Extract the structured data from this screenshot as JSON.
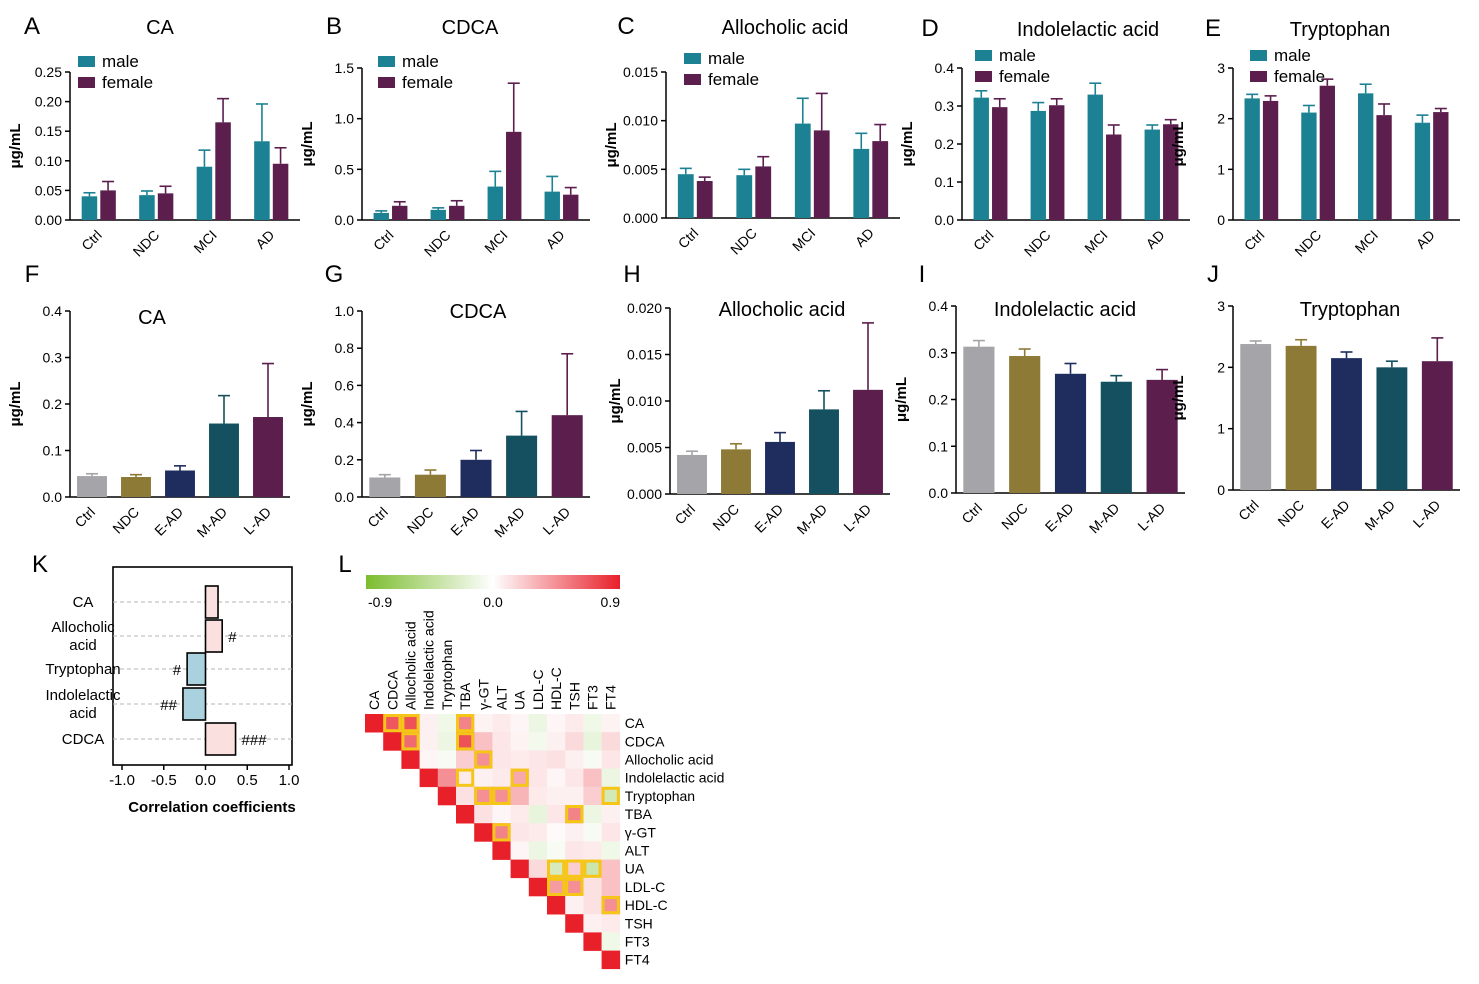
{
  "chart_data": [
    {
      "panel": "A",
      "type": "bar",
      "title": "CA",
      "ylabel": "μg/mL",
      "ylim": [
        0,
        0.25
      ],
      "yticks": [
        "0.00",
        "0.05",
        "0.10",
        "0.15",
        "0.20",
        "0.25"
      ],
      "categories": [
        "Ctrl",
        "NDC",
        "MCI",
        "AD"
      ],
      "legend": [
        "male",
        "female"
      ],
      "series": [
        {
          "name": "male",
          "values": [
            0.04,
            0.042,
            0.09,
            0.133
          ],
          "errors": [
            0.006,
            0.007,
            0.028,
            0.063
          ]
        },
        {
          "name": "female",
          "values": [
            0.05,
            0.045,
            0.165,
            0.095
          ],
          "errors": [
            0.015,
            0.012,
            0.04,
            0.027
          ]
        }
      ]
    },
    {
      "panel": "B",
      "type": "bar",
      "title": "CDCA",
      "ylabel": "μg/mL",
      "ylim": [
        0,
        1.5
      ],
      "yticks": [
        "0.0",
        "0.5",
        "1.0",
        "1.5"
      ],
      "categories": [
        "Ctrl",
        "NDC",
        "MCI",
        "AD"
      ],
      "legend": [
        "male",
        "female"
      ],
      "series": [
        {
          "name": "male",
          "values": [
            0.07,
            0.1,
            0.33,
            0.28
          ],
          "errors": [
            0.02,
            0.02,
            0.15,
            0.15
          ]
        },
        {
          "name": "female",
          "values": [
            0.14,
            0.14,
            0.87,
            0.25
          ],
          "errors": [
            0.04,
            0.05,
            0.48,
            0.07
          ]
        }
      ]
    },
    {
      "panel": "C",
      "type": "bar",
      "title": "Allocholic acid",
      "ylabel": "μg/mL",
      "ylim": [
        0,
        0.015
      ],
      "yticks": [
        "0.000",
        "0.005",
        "0.010",
        "0.015"
      ],
      "categories": [
        "Ctrl",
        "NDC",
        "MCI",
        "AD"
      ],
      "legend": [
        "male",
        "female"
      ],
      "series": [
        {
          "name": "male",
          "values": [
            0.0045,
            0.0044,
            0.0097,
            0.0071
          ],
          "errors": [
            0.0006,
            0.0006,
            0.0026,
            0.0016
          ]
        },
        {
          "name": "female",
          "values": [
            0.0038,
            0.0053,
            0.009,
            0.0079
          ],
          "errors": [
            0.0004,
            0.001,
            0.0038,
            0.0017
          ]
        }
      ]
    },
    {
      "panel": "D",
      "type": "bar",
      "title": "Indolelactic acid",
      "ylabel": "μg/mL",
      "ylim": [
        0,
        0.4
      ],
      "yticks": [
        "0.0",
        "0.1",
        "0.2",
        "0.3",
        "0.4"
      ],
      "categories": [
        "Ctrl",
        "NDC",
        "MCI",
        "AD"
      ],
      "legend": [
        "male",
        "female"
      ],
      "series": [
        {
          "name": "male",
          "values": [
            0.322,
            0.287,
            0.33,
            0.238
          ],
          "errors": [
            0.018,
            0.022,
            0.03,
            0.012
          ]
        },
        {
          "name": "female",
          "values": [
            0.297,
            0.302,
            0.225,
            0.252
          ],
          "errors": [
            0.022,
            0.017,
            0.025,
            0.012
          ]
        }
      ]
    },
    {
      "panel": "E",
      "type": "bar",
      "title": "Tryptophan",
      "ylabel": "μg/mL",
      "ylim": [
        0,
        3
      ],
      "yticks": [
        "0",
        "1",
        "2",
        "3"
      ],
      "categories": [
        "Ctrl",
        "NDC",
        "MCI",
        "AD"
      ],
      "legend": [
        "male",
        "female"
      ],
      "series": [
        {
          "name": "male",
          "values": [
            2.4,
            2.12,
            2.5,
            1.92
          ],
          "errors": [
            0.08,
            0.14,
            0.18,
            0.15
          ]
        },
        {
          "name": "female",
          "values": [
            2.35,
            2.65,
            2.07,
            2.13
          ],
          "errors": [
            0.1,
            0.13,
            0.22,
            0.07
          ]
        }
      ]
    },
    {
      "panel": "F",
      "type": "bar",
      "title": "CA",
      "ylabel": "μg/mL",
      "ylim": [
        0,
        0.4
      ],
      "yticks": [
        "0.0",
        "0.1",
        "0.2",
        "0.3",
        "0.4"
      ],
      "categories": [
        "Ctrl",
        "NDC",
        "E-AD",
        "M-AD",
        "L-AD"
      ],
      "colors": [
        "#a5a5a9",
        "#8c7a36",
        "#1f2d5e",
        "#14505f",
        "#5b1e4d"
      ],
      "values": [
        0.045,
        0.043,
        0.057,
        0.158,
        0.172
      ],
      "errors": [
        0.005,
        0.005,
        0.01,
        0.06,
        0.115
      ]
    },
    {
      "panel": "G",
      "type": "bar",
      "title": "CDCA",
      "ylabel": "μg/mL",
      "ylim": [
        0,
        1.0
      ],
      "yticks": [
        "0.0",
        "0.2",
        "0.4",
        "0.6",
        "0.8",
        "1.0"
      ],
      "categories": [
        "Ctrl",
        "NDC",
        "E-AD",
        "M-AD",
        "L-AD"
      ],
      "colors": [
        "#a5a5a9",
        "#8c7a36",
        "#1f2d5e",
        "#14505f",
        "#5b1e4d"
      ],
      "values": [
        0.105,
        0.12,
        0.2,
        0.33,
        0.44
      ],
      "errors": [
        0.015,
        0.025,
        0.05,
        0.13,
        0.33
      ]
    },
    {
      "panel": "H",
      "type": "bar",
      "title": "Allocholic acid",
      "ylabel": "μg/mL",
      "ylim": [
        0,
        0.02
      ],
      "yticks": [
        "0.000",
        "0.005",
        "0.010",
        "0.015",
        "0.020"
      ],
      "categories": [
        "Ctrl",
        "NDC",
        "E-AD",
        "M-AD",
        "L-AD"
      ],
      "colors": [
        "#a5a5a9",
        "#8c7a36",
        "#1f2d5e",
        "#14505f",
        "#5b1e4d"
      ],
      "values": [
        0.0042,
        0.0048,
        0.0056,
        0.0091,
        0.0112
      ],
      "errors": [
        0.0004,
        0.0006,
        0.001,
        0.002,
        0.0072
      ]
    },
    {
      "panel": "I",
      "type": "bar",
      "title": "Indolelactic acid",
      "ylabel": "μg/mL",
      "ylim": [
        0,
        0.4
      ],
      "yticks": [
        "0.0",
        "0.1",
        "0.2",
        "0.3",
        "0.4"
      ],
      "categories": [
        "Ctrl",
        "NDC",
        "E-AD",
        "M-AD",
        "L-AD"
      ],
      "colors": [
        "#a5a5a9",
        "#8c7a36",
        "#1f2d5e",
        "#14505f",
        "#5b1e4d"
      ],
      "values": [
        0.313,
        0.293,
        0.255,
        0.238,
        0.242
      ],
      "errors": [
        0.013,
        0.015,
        0.022,
        0.013,
        0.022
      ]
    },
    {
      "panel": "J",
      "type": "bar",
      "title": "Tryptophan",
      "ylabel": "μg/mL",
      "ylim": [
        0,
        3
      ],
      "yticks": [
        "0",
        "1",
        "2",
        "3"
      ],
      "categories": [
        "Ctrl",
        "NDC",
        "E-AD",
        "M-AD",
        "L-AD"
      ],
      "colors": [
        "#a5a5a9",
        "#8c7a36",
        "#1f2d5e",
        "#14505f",
        "#5b1e4d"
      ],
      "values": [
        2.38,
        2.35,
        2.15,
        2.0,
        2.1
      ],
      "errors": [
        0.05,
        0.1,
        0.1,
        0.1,
        0.38
      ]
    },
    {
      "panel": "K",
      "type": "bar",
      "orientation": "horizontal",
      "xlabel": "Correlation coefficients",
      "xlim": [
        -1,
        1
      ],
      "xticks": [
        "-1.0",
        "-0.5",
        "0.0",
        "0.5",
        "1.0"
      ],
      "categories": [
        "CA",
        "Allocholic\nacid",
        "Tryptophan",
        "Indolelactic\nacid",
        "CDCA"
      ],
      "category_lines": [
        [
          "CA"
        ],
        [
          "Allocholic",
          "acid"
        ],
        [
          "Tryptophan"
        ],
        [
          "Indolelactic",
          "acid"
        ],
        [
          "CDCA"
        ]
      ],
      "values": [
        0.15,
        0.2,
        -0.22,
        -0.27,
        0.36
      ],
      "annotations": [
        "",
        "#",
        "#",
        "##",
        "###"
      ],
      "pos_color": "#fbe0e0",
      "neg_color": "#a9d1de"
    },
    {
      "panel": "L",
      "type": "heatmap",
      "colorbar": {
        "min": -0.9,
        "max": 0.9,
        "ticks": [
          "-0.9",
          "0.0",
          "0.9"
        ],
        "neg_color": "#7bbd2f",
        "mid_color": "#ffffff",
        "pos_color": "#e8202a"
      },
      "variables": [
        "CA",
        "CDCA",
        "Allocholic acid",
        "Indolelactic acid",
        "Tryptophan",
        "TBA",
        "γ-GT",
        "ALT",
        "UA",
        "LDL-C",
        "HDL-C",
        "TSH",
        "FT3",
        "FT4"
      ],
      "values": [
        [
          1.0,
          0.68,
          0.7,
          0.06,
          -0.1,
          0.5,
          0.05,
          0.08,
          0.04,
          -0.12,
          0.04,
          0.08,
          -0.1,
          0.05
        ],
        [
          1.0,
          0.6,
          0.06,
          -0.12,
          0.7,
          0.25,
          0.1,
          0.05,
          -0.08,
          0.06,
          0.15,
          -0.15,
          0.15
        ],
        [
          1.0,
          0.04,
          -0.05,
          0.2,
          0.45,
          0.1,
          0.08,
          0.1,
          0.12,
          0.06,
          -0.05,
          0.1
        ],
        [
          1.0,
          0.45,
          0.08,
          0.06,
          0.08,
          0.35,
          0.1,
          0.04,
          0.1,
          0.25,
          -0.12
        ],
        [
          1.0,
          0.12,
          0.45,
          0.45,
          0.3,
          0.08,
          0.06,
          0.06,
          0.2,
          -0.3
        ],
        [
          1.0,
          0.12,
          0.04,
          0.08,
          -0.15,
          0.1,
          0.5,
          -0.12,
          0.06
        ],
        [
          1.0,
          0.5,
          0.1,
          0.08,
          0.02,
          0.06,
          -0.05,
          0.1
        ],
        [
          1.0,
          0.04,
          -0.12,
          -0.05,
          0.1,
          0.08,
          -0.1
        ],
        [
          1.0,
          0.15,
          -0.28,
          0.2,
          -0.35,
          0.25
        ],
        [
          1.0,
          0.4,
          0.45,
          0.12,
          0.25
        ],
        [
          1.0,
          0.06,
          0.12,
          0.45
        ],
        [
          1.0,
          0.06,
          0.08
        ],
        [
          1.0,
          -0.1
        ],
        [
          1.0
        ]
      ],
      "highlighted": [
        [
          0,
          1
        ],
        [
          0,
          2
        ],
        [
          1,
          2
        ],
        [
          0,
          5
        ],
        [
          1,
          5
        ],
        [
          2,
          6
        ],
        [
          3,
          5
        ],
        [
          3,
          8
        ],
        [
          4,
          6
        ],
        [
          4,
          7
        ],
        [
          4,
          13
        ],
        [
          5,
          11
        ],
        [
          6,
          7
        ],
        [
          8,
          10
        ],
        [
          8,
          11
        ],
        [
          8,
          12
        ],
        [
          9,
          10
        ],
        [
          9,
          11
        ],
        [
          10,
          13
        ]
      ]
    }
  ]
}
